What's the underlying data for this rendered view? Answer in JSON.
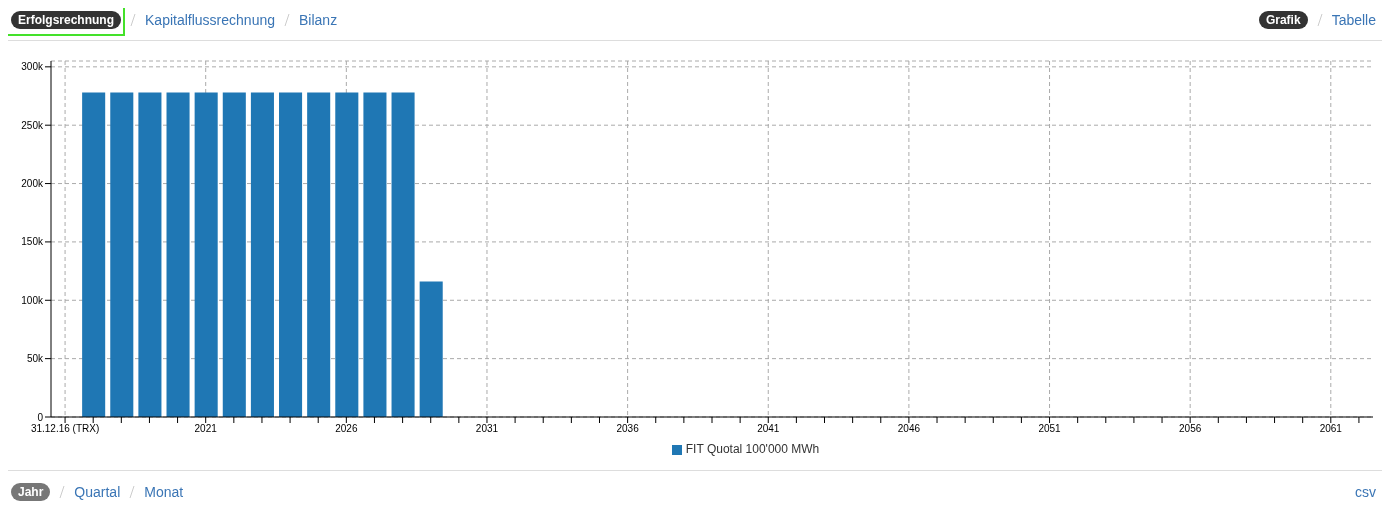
{
  "chart_data": {
    "type": "bar",
    "x": [
      2017,
      2018,
      2019,
      2020,
      2021,
      2022,
      2023,
      2024,
      2025,
      2026,
      2027,
      2028,
      2029
    ],
    "series": [
      {
        "name": "FIT Quotal 100'000 MWh",
        "color": "#1f77b4",
        "values": [
          278000,
          278000,
          278000,
          278000,
          278000,
          278000,
          278000,
          278000,
          278000,
          278000,
          278000,
          278000,
          116000
        ]
      }
    ],
    "xlim": [
      2015.5,
      2062.5
    ],
    "xticks": [
      {
        "value": 2016,
        "label": "31.12.16 (TRX)"
      },
      {
        "value": 2017,
        "label": null
      },
      {
        "value": 2018,
        "label": null
      },
      {
        "value": 2019,
        "label": null
      },
      {
        "value": 2020,
        "label": null
      },
      2021,
      {
        "value": 2022,
        "label": null
      },
      {
        "value": 2023,
        "label": null
      },
      {
        "value": 2024,
        "label": null
      },
      {
        "value": 2025,
        "label": null
      },
      2026,
      {
        "value": 2027,
        "label": null
      },
      {
        "value": 2028,
        "label": null
      },
      {
        "value": 2029,
        "label": null
      },
      {
        "value": 2030,
        "label": null
      },
      2031,
      {
        "value": 2032,
        "label": null
      },
      {
        "value": 2033,
        "label": null
      },
      {
        "value": 2034,
        "label": null
      },
      {
        "value": 2035,
        "label": null
      },
      2036,
      {
        "value": 2037,
        "label": null
      },
      {
        "value": 2038,
        "label": null
      },
      {
        "value": 2039,
        "label": null
      },
      {
        "value": 2040,
        "label": null
      },
      2041,
      {
        "value": 2042,
        "label": null
      },
      {
        "value": 2043,
        "label": null
      },
      {
        "value": 2044,
        "label": null
      },
      {
        "value": 2045,
        "label": null
      },
      2046,
      {
        "value": 2047,
        "label": null
      },
      {
        "value": 2048,
        "label": null
      },
      {
        "value": 2049,
        "label": null
      },
      {
        "value": 2050,
        "label": null
      },
      2051,
      {
        "value": 2052,
        "label": null
      },
      {
        "value": 2053,
        "label": null
      },
      {
        "value": 2054,
        "label": null
      },
      {
        "value": 2055,
        "label": null
      },
      2056,
      {
        "value": 2057,
        "label": null
      },
      {
        "value": 2058,
        "label": null
      },
      {
        "value": 2059,
        "label": null
      },
      {
        "value": 2060,
        "label": null
      },
      2061,
      {
        "value": 2062,
        "label": null
      }
    ],
    "ylim": [
      0,
      305000
    ],
    "yticks": [
      0,
      {
        "value": 50000,
        "label": "50k"
      },
      {
        "value": 100000,
        "label": "100k"
      },
      {
        "value": 150000,
        "label": "150k"
      },
      {
        "value": 200000,
        "label": "200k"
      },
      {
        "value": 250000,
        "label": "250k"
      },
      {
        "value": 300000,
        "label": "300k"
      }
    ],
    "grid": true,
    "legend": "bottom",
    "annotations": [
      "Erfolgsrechnung",
      "Kapitalflussrechnung",
      "Bilanz",
      "Grafik",
      "Tabelle",
      "Jahr",
      "Quartal",
      "Monat",
      "csv"
    ]
  }
}
